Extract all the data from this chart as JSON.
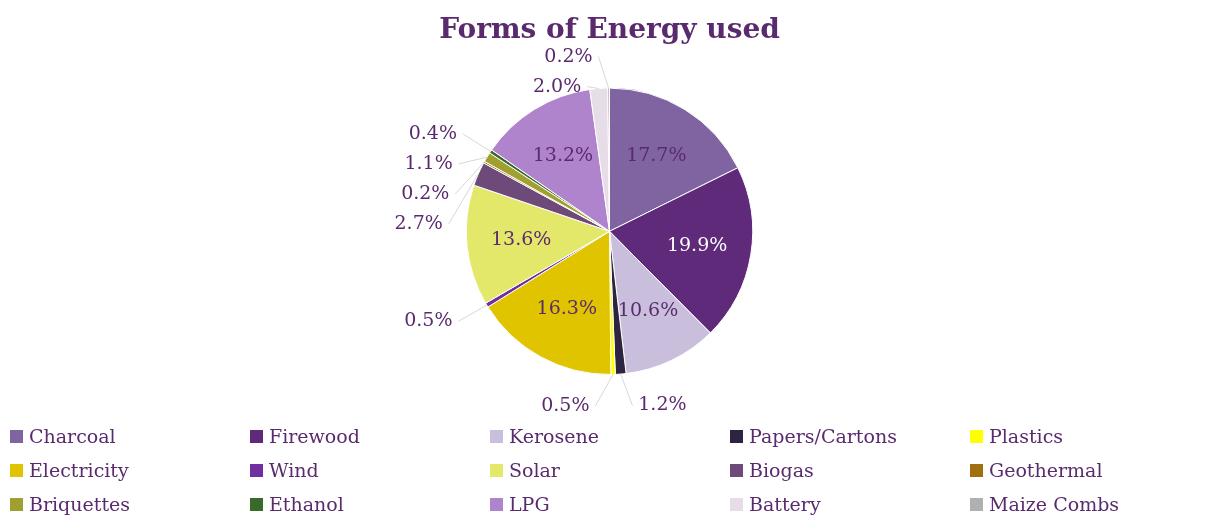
{
  "chart_data": {
    "type": "pie",
    "title": "Forms of Energy used",
    "categories": [
      "Charcoal",
      "Firewood",
      "Kerosene",
      "Papers/Cartons",
      "Plastics",
      "Electricity",
      "Wind",
      "Solar",
      "Biogas",
      "Geothermal",
      "Briquettes",
      "Ethanol",
      "LPG",
      "Battery",
      "Maize Combs"
    ],
    "values": [
      17.7,
      19.9,
      10.6,
      1.2,
      0.5,
      16.3,
      0.5,
      13.6,
      2.7,
      0.2,
      1.1,
      0.4,
      13.2,
      2.0,
      0.2
    ],
    "value_labels": [
      "17.7%",
      "19.9%",
      "10.6%",
      "1.2%",
      "0.5%",
      "16.3%",
      "0.5%",
      "13.6%",
      "2.7%",
      "0.2%",
      "1.1%",
      "0.4%",
      "13.2%",
      "2.0%",
      "0.2%"
    ],
    "colors": [
      "#8064a2",
      "#5f2a7a",
      "#c9bfdc",
      "#2e2340",
      "#ffff00",
      "#e0c400",
      "#7030a0",
      "#e4e86a",
      "#6e4a7a",
      "#a07010",
      "#a0a030",
      "#3a6a2a",
      "#b084cc",
      "#e6dde9",
      "#b0b0b0"
    ],
    "legend": "bottom"
  }
}
